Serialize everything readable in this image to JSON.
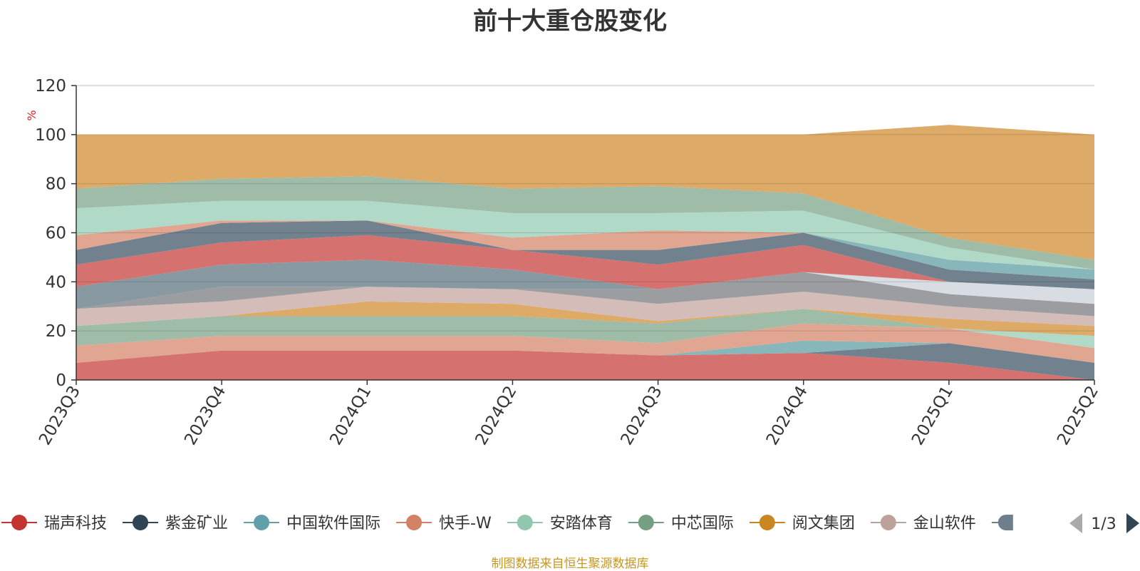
{
  "chart_data": {
    "type": "area",
    "stacked": true,
    "title": "前十大重仓股变化",
    "ylabel": "%",
    "ylim": [
      0,
      120
    ],
    "yticks": [
      0,
      20,
      40,
      60,
      80,
      100,
      120
    ],
    "grid": true,
    "categories": [
      "2023Q3",
      "2023Q4",
      "2024Q1",
      "2024Q2",
      "2024Q3",
      "2024Q4",
      "2025Q1",
      "2025Q2"
    ],
    "series": [
      {
        "name": "瑞声科技",
        "color": "#d46f6d",
        "values": [
          7,
          12,
          12,
          12,
          10,
          11,
          7,
          0
        ]
      },
      {
        "name": "紫金矿业",
        "color": "#6e7f8c",
        "values": [
          0,
          0,
          0,
          0,
          0,
          0,
          8,
          7
        ]
      },
      {
        "name": "中国软件国际",
        "color": "#85b5ba",
        "values": [
          0,
          0,
          0,
          0,
          0,
          5,
          0,
          0
        ]
      },
      {
        "name": "快手-W",
        "color": "#e0a48f",
        "values": [
          7,
          6,
          6,
          6,
          5,
          7,
          6,
          6
        ]
      },
      {
        "name": "安踏体育",
        "color": "#afd8c6",
        "values": [
          0,
          0,
          0,
          0,
          0,
          0,
          0,
          5
        ]
      },
      {
        "name": "中芯国际",
        "color": "#9dbba7",
        "values": [
          8,
          8,
          8,
          8,
          8,
          6,
          0,
          0
        ]
      },
      {
        "name": "阅文集团",
        "color": "#dca864",
        "values": [
          0,
          0,
          6,
          5,
          1,
          0,
          4,
          4
        ]
      },
      {
        "name": "金山软件",
        "color": "#d3bcb7",
        "values": [
          7,
          6,
          6,
          6,
          7,
          7,
          5,
          4
        ]
      },
      {
        "name": "",
        "color": "#999b9e",
        "values": [
          0,
          6,
          0,
          0,
          6,
          8,
          5,
          5
        ]
      },
      {
        "name": "",
        "color": "#d7dbe2",
        "values": [
          0,
          0,
          0,
          0,
          0,
          0,
          5,
          6
        ]
      },
      {
        "name": "",
        "color": "#8797a0",
        "values": [
          9,
          9,
          11,
          8,
          0,
          0,
          0,
          0
        ]
      },
      {
        "name": "",
        "color": "#d46f6d",
        "values": [
          9,
          9,
          10,
          8,
          10,
          11,
          0,
          0
        ]
      },
      {
        "name": "",
        "color": "#6e7f8c",
        "values": [
          6,
          8,
          6,
          0,
          6,
          5,
          5,
          4
        ]
      },
      {
        "name": "",
        "color": "#85b5ba",
        "values": [
          0,
          0,
          0,
          0,
          0,
          0,
          4,
          4
        ]
      },
      {
        "name": "",
        "color": "#e0a48f",
        "values": [
          6,
          1,
          0,
          5,
          8,
          0,
          0,
          0
        ]
      },
      {
        "name": "",
        "color": "#afd8c6",
        "values": [
          11,
          8,
          8,
          10,
          7,
          9,
          5,
          0
        ]
      },
      {
        "name": "",
        "color": "#9dbba7",
        "values": [
          8,
          9,
          10,
          10,
          11,
          7,
          4,
          4
        ]
      },
      {
        "name": "",
        "color": "#dca864",
        "values": [
          22,
          18,
          17,
          22,
          21,
          24,
          46,
          51
        ]
      }
    ],
    "legend": {
      "position": "bottom",
      "page": "1/3",
      "visible_items": [
        "瑞声科技",
        "紫金矿业",
        "中国软件国际",
        "快手-W",
        "安踏体育",
        "中芯国际",
        "阅文集团",
        "金山软件"
      ],
      "partial_item_color": "#6e7f8c"
    },
    "source": "制图数据来自恒生聚源数据库"
  }
}
